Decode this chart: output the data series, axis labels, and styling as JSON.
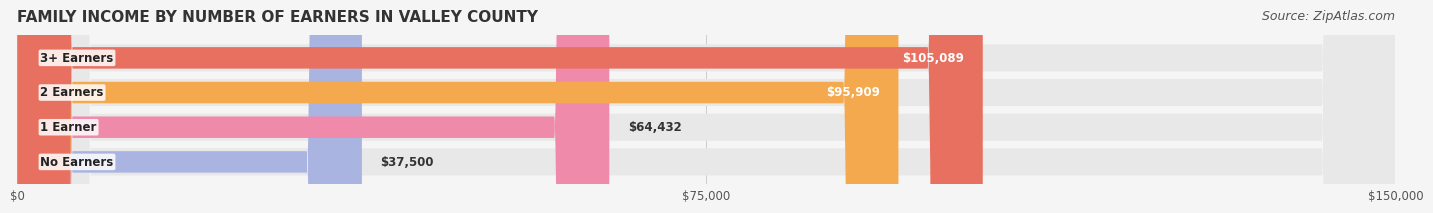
{
  "title": "FAMILY INCOME BY NUMBER OF EARNERS IN VALLEY COUNTY",
  "source": "Source: ZipAtlas.com",
  "categories": [
    "No Earners",
    "1 Earner",
    "2 Earners",
    "3+ Earners"
  ],
  "values": [
    37500,
    64432,
    95909,
    105089
  ],
  "bar_colors": [
    "#aab4e0",
    "#f08aab",
    "#f5a94e",
    "#e87060"
  ],
  "bar_bg_color": "#f0f0f0",
  "label_colors": [
    "#333333",
    "#333333",
    "#ffffff",
    "#ffffff"
  ],
  "xlim": [
    0,
    150000
  ],
  "xticks": [
    0,
    75000,
    150000
  ],
  "xtick_labels": [
    "$0",
    "$75,000",
    "$150,000"
  ],
  "value_labels": [
    "$37,500",
    "$64,432",
    "$95,909",
    "$105,089"
  ],
  "background_color": "#f5f5f5",
  "bar_background": "#e8e8e8",
  "title_fontsize": 11,
  "source_fontsize": 9
}
